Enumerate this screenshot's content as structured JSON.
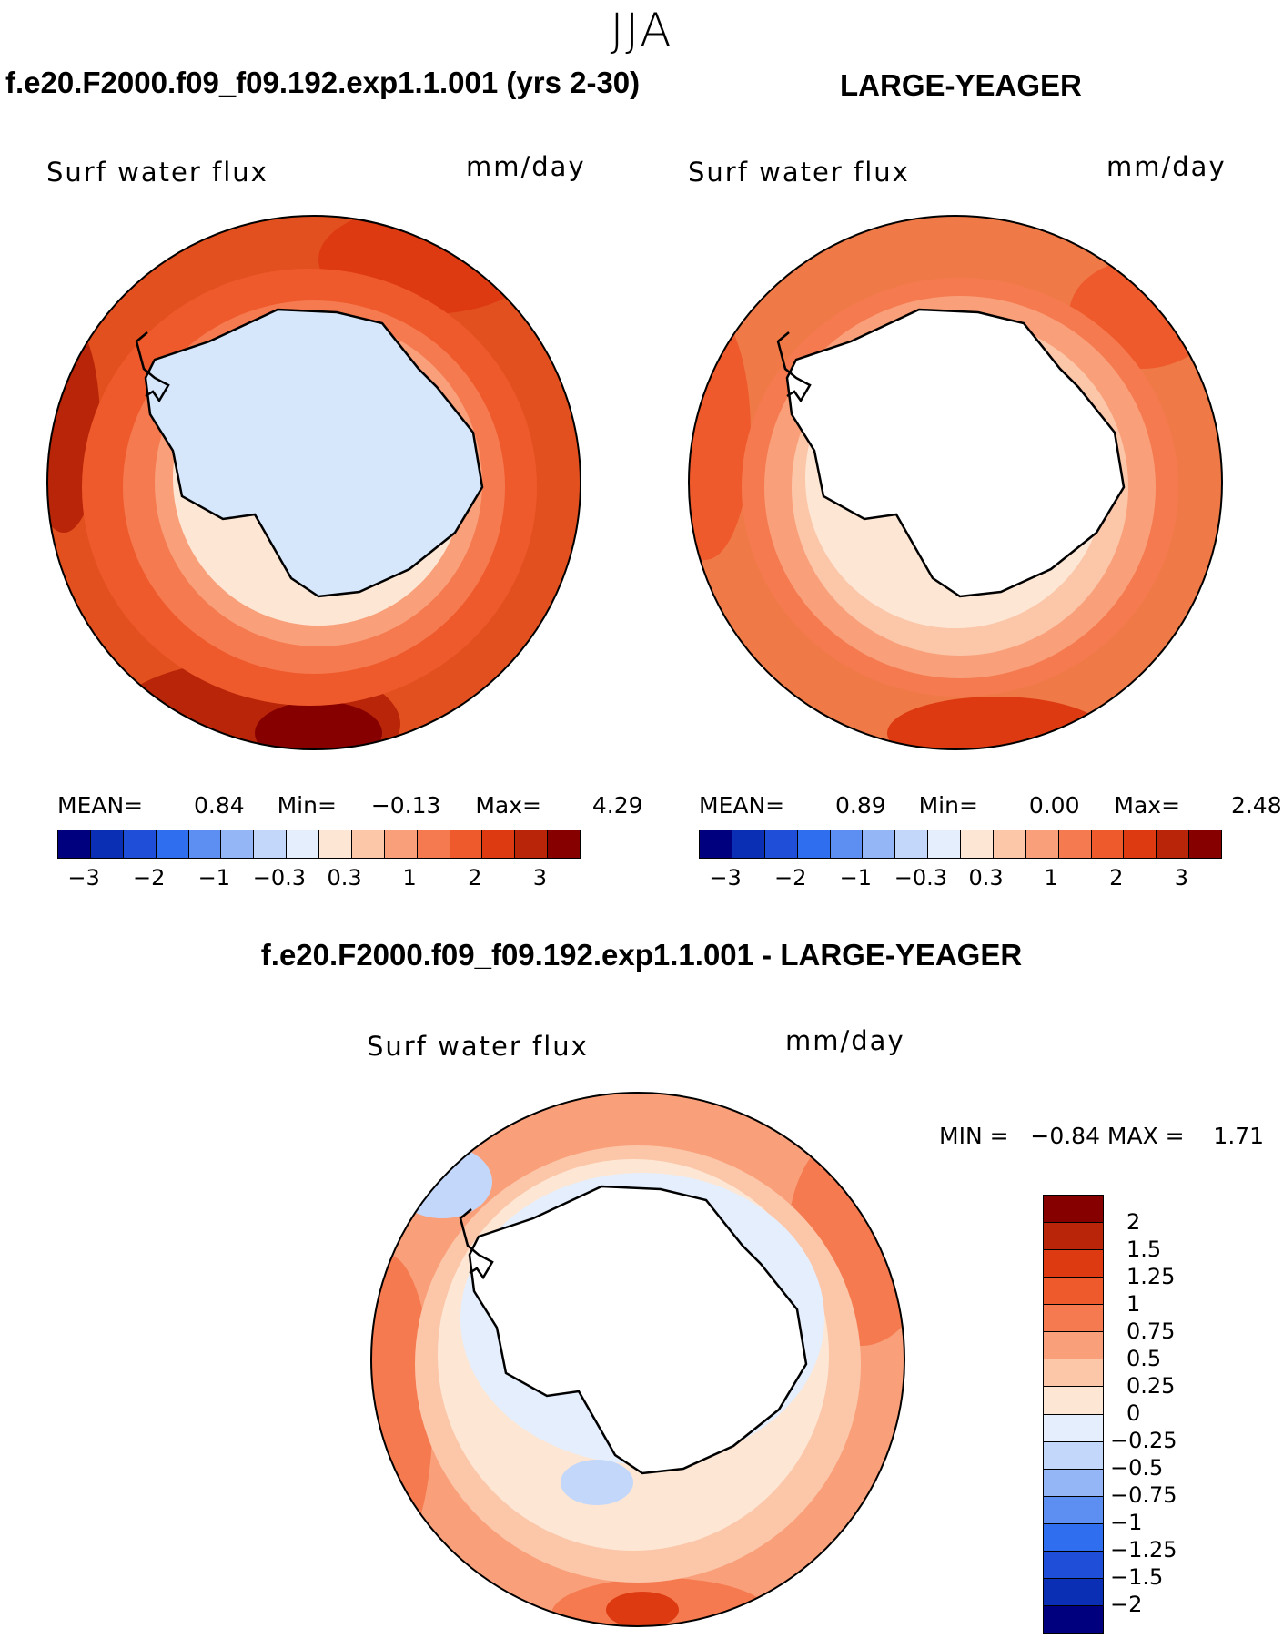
{
  "figure": {
    "season": "JJA",
    "diff_title": "f.e20.F2000.f09_f09.192.exp1.1.001 - LARGE-YEAGER"
  },
  "panels": [
    {
      "header": "f.e20.F2000.f09_f09.192.exp1.1.001 (yrs 2-30)",
      "variable": "Surf water flux",
      "units": "mm/day",
      "stats": {
        "mean_label": "MEAN=",
        "mean": "0.84",
        "min_label": "Min=",
        "min": "−0.13",
        "max_label": "Max=",
        "max": "4.29"
      },
      "colorbar_ticks": [
        "−3",
        "−2",
        "−1",
        "−0.3",
        "0.3",
        "1",
        "2",
        "3"
      ]
    },
    {
      "header": "LARGE-YEAGER",
      "variable": "Surf water flux",
      "units": "mm/day",
      "stats": {
        "mean_label": "MEAN=",
        "mean": "0.89",
        "min_label": "Min=",
        "min": "0.00",
        "max_label": "Max=",
        "max": "2.48"
      },
      "colorbar_ticks": [
        "−3",
        "−2",
        "−1",
        "−0.3",
        "0.3",
        "1",
        "2",
        "3"
      ]
    }
  ],
  "diff_panel": {
    "variable": "Surf water flux",
    "units": "mm/day",
    "minmax": "MIN =   −0.84 MAX =    1.71",
    "legend_labels": [
      "2",
      "1.5",
      "1.25",
      "1",
      "0.75",
      "0.5",
      "0.25",
      "0",
      "−0.25",
      "−0.5",
      "−0.75",
      "−1",
      "−1.25",
      "−1.5",
      "−2"
    ]
  },
  "colors": {
    "cmap_main": [
      "#00007f",
      "#0a2fb4",
      "#1f4fd8",
      "#2f6fef",
      "#5d8ff3",
      "#95b6f6",
      "#c3d7fa",
      "#e4eefd",
      "#fde7d4",
      "#fcc6a9",
      "#f9a07a",
      "#f57a50",
      "#ef5a2c",
      "#dd3a12",
      "#b82508",
      "#860000"
    ],
    "cmap_diff": [
      "#860000",
      "#b82508",
      "#dd3a12",
      "#ef5a2c",
      "#f57a50",
      "#f9a07a",
      "#fcc6a9",
      "#fde7d4",
      "#e4eefd",
      "#c3d7fa",
      "#95b6f6",
      "#5d8ff3",
      "#2f6fef",
      "#1f4fd8",
      "#0a2fb4",
      "#00007f"
    ],
    "ocean_main": "#e3501f",
    "ocean_ctrl": "#ef7a48",
    "ocean_diff": "#fbc7a6",
    "antarctica_main": "#d6e6fb",
    "antarctica_other": "#ffffff"
  }
}
